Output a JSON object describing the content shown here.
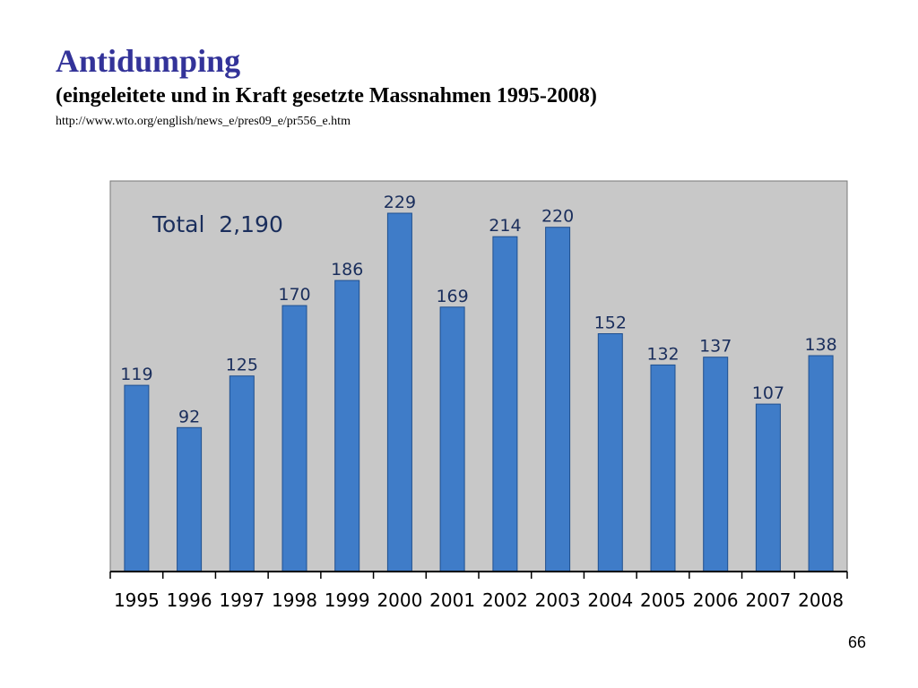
{
  "slide": {
    "title": "Antidumping",
    "subtitle": "(eingeleitete und in Kraft gesetzte Massnahmen 1995-2008)",
    "source_url": "http://www.wto.org/english/news_e/pres09_e/pr556_e.htm",
    "page_number": "66"
  },
  "chart_data": {
    "type": "bar",
    "title": "",
    "annotation": "Total  2,190",
    "categories": [
      "1995",
      "1996",
      "1997",
      "1998",
      "1999",
      "2000",
      "2001",
      "2002",
      "2003",
      "2004",
      "2005",
      "2006",
      "2007",
      "2008"
    ],
    "values": [
      119,
      92,
      125,
      170,
      186,
      229,
      169,
      214,
      220,
      152,
      132,
      137,
      107,
      138
    ],
    "ylim": [
      0,
      245
    ],
    "grid": false,
    "legend": "none",
    "colors": {
      "bar": "#3f7cc8",
      "bar_edge": "#1f4f8f",
      "plot_background": "#c8c8c8",
      "label_text": "#1a2e5c",
      "title": "#333399"
    }
  }
}
